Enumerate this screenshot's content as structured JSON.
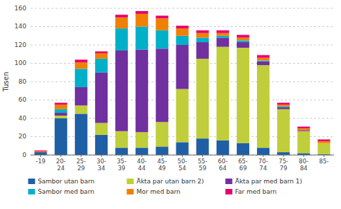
{
  "chart_data": {
    "type": "bar",
    "stacked": true,
    "categories": [
      "-19",
      "20-\n24",
      "25-\n29",
      "30-\n34",
      "35-\n39",
      "40-\n44",
      "45-\n49",
      "50-\n54",
      "55-\n59",
      "60-\n64",
      "65-\n69",
      "70-\n74",
      "75-\n79",
      "80-\n84",
      "85-"
    ],
    "series": [
      {
        "name": "Sambor utan barn",
        "color": "#1F5FA6",
        "values": [
          3,
          40,
          45,
          22,
          8,
          8,
          9,
          14,
          18,
          16,
          13,
          8,
          3,
          2,
          1
        ]
      },
      {
        "name": "Äkta par utan barn 2)",
        "color": "#BFCE3A",
        "values": [
          0,
          3,
          9,
          13,
          18,
          17,
          27,
          58,
          87,
          102,
          104,
          90,
          47,
          24,
          12
        ]
      },
      {
        "name": "Äkta par med barn 1)",
        "color": "#7030A0",
        "values": [
          0,
          3,
          20,
          55,
          88,
          90,
          80,
          48,
          18,
          10,
          6,
          4,
          2,
          1,
          0
        ]
      },
      {
        "name": "Sambor med barn",
        "color": "#00B0C8",
        "values": [
          0,
          4,
          20,
          15,
          24,
          25,
          20,
          10,
          5,
          2,
          2,
          1,
          1,
          0,
          0
        ]
      },
      {
        "name": "Mor med barn",
        "color": "#F08000",
        "values": [
          1,
          5,
          7,
          6,
          12,
          14,
          13,
          8,
          5,
          3,
          3,
          3,
          2,
          2,
          2
        ]
      },
      {
        "name": "Far med barn",
        "color": "#E8006A",
        "values": [
          1,
          2,
          3,
          2,
          3,
          3,
          3,
          3,
          3,
          3,
          3,
          3,
          2,
          2,
          2
        ]
      }
    ],
    "y_label": "Tusen",
    "ylim": [
      0,
      160
    ],
    "yticks": [
      0,
      20,
      40,
      60,
      80,
      100,
      120,
      140,
      160
    ],
    "grid": true,
    "legend": "bottom"
  }
}
